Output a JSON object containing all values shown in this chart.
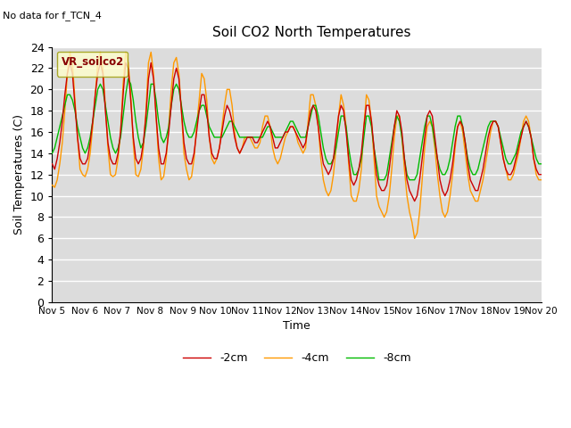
{
  "title": "Soil CO2 North Temperatures",
  "no_data_text": "No data for f_TCN_4",
  "legend_box_label": "VR_soilco2",
  "ylabel": "Soil Temperatures (C)",
  "xlabel": "Time",
  "ylim": [
    0,
    24
  ],
  "background_color": "#dcdcdc",
  "fig_background": "#ffffff",
  "colors": {
    "2cm": "#cc0000",
    "4cm": "#ff9900",
    "8cm": "#00bb00"
  },
  "legend_labels": [
    "-2cm",
    "-4cm",
    "-8cm"
  ],
  "x_tick_labels": [
    "Nov 5",
    "Nov 6",
    "Nov 7",
    "Nov 8",
    "Nov 9",
    "Nov 10",
    "Nov 11",
    "Nov 12",
    "Nov 13",
    "Nov 14",
    "Nov 15",
    "Nov 16",
    "Nov 17",
    "Nov 18",
    "Nov 19",
    "Nov 20"
  ],
  "v_4cm": [
    11.0,
    10.8,
    11.5,
    13.0,
    15.0,
    18.0,
    21.5,
    23.5,
    22.5,
    19.0,
    15.5,
    12.5,
    12.0,
    11.8,
    12.5,
    14.0,
    16.5,
    19.5,
    22.5,
    23.5,
    22.0,
    18.5,
    14.5,
    12.0,
    11.8,
    12.0,
    13.5,
    16.0,
    20.5,
    23.5,
    22.5,
    19.5,
    15.0,
    12.0,
    11.8,
    12.5,
    14.5,
    18.0,
    22.5,
    23.5,
    21.5,
    17.5,
    13.5,
    11.5,
    11.8,
    13.5,
    16.5,
    20.0,
    22.5,
    23.0,
    21.5,
    18.0,
    14.0,
    12.5,
    11.5,
    11.8,
    13.5,
    16.5,
    19.0,
    21.5,
    21.0,
    19.0,
    15.5,
    13.5,
    13.0,
    13.5,
    14.5,
    16.5,
    18.5,
    20.0,
    20.0,
    18.5,
    16.0,
    14.5,
    14.0,
    14.5,
    15.5,
    15.5,
    15.5,
    15.0,
    14.5,
    14.5,
    15.0,
    16.5,
    17.5,
    17.5,
    16.5,
    14.5,
    13.5,
    13.0,
    13.5,
    14.5,
    15.5,
    16.0,
    16.5,
    16.5,
    16.0,
    15.0,
    14.5,
    14.0,
    14.5,
    17.0,
    19.5,
    19.5,
    18.5,
    16.5,
    13.5,
    11.5,
    10.5,
    10.0,
    10.5,
    12.0,
    14.5,
    17.5,
    19.5,
    18.5,
    16.5,
    13.0,
    10.0,
    9.5,
    9.5,
    10.5,
    12.5,
    16.5,
    19.5,
    19.0,
    17.0,
    13.5,
    10.0,
    9.0,
    8.5,
    8.0,
    8.5,
    10.0,
    12.5,
    15.5,
    17.5,
    17.5,
    15.5,
    12.5,
    10.0,
    8.5,
    7.5,
    6.0,
    6.5,
    8.5,
    11.5,
    14.5,
    16.5,
    17.0,
    16.5,
    14.5,
    12.0,
    10.0,
    8.5,
    8.0,
    8.5,
    10.0,
    12.0,
    14.5,
    16.5,
    17.0,
    16.0,
    14.0,
    12.0,
    10.5,
    10.0,
    9.5,
    9.5,
    10.5,
    11.5,
    13.0,
    14.5,
    16.0,
    17.0,
    17.0,
    16.5,
    15.0,
    13.5,
    12.5,
    11.5,
    11.5,
    12.0,
    13.0,
    14.0,
    15.5,
    17.0,
    17.5,
    17.0,
    15.5,
    13.5,
    12.0,
    11.5,
    11.5
  ],
  "v_2cm": [
    13.0,
    12.5,
    13.5,
    15.0,
    17.0,
    19.5,
    21.5,
    22.5,
    21.5,
    18.5,
    15.5,
    13.5,
    13.0,
    13.0,
    13.5,
    15.0,
    17.0,
    19.5,
    21.5,
    22.5,
    21.5,
    18.0,
    15.0,
    13.5,
    13.0,
    13.0,
    14.0,
    16.0,
    19.5,
    22.5,
    22.0,
    19.0,
    15.5,
    13.5,
    13.0,
    13.5,
    15.0,
    17.5,
    21.0,
    22.5,
    21.0,
    17.5,
    14.5,
    13.0,
    13.0,
    14.0,
    16.0,
    18.5,
    21.0,
    22.0,
    21.0,
    18.0,
    15.0,
    13.5,
    13.0,
    13.0,
    14.0,
    16.0,
    18.0,
    19.5,
    19.5,
    18.0,
    15.5,
    14.0,
    13.5,
    13.5,
    14.5,
    16.0,
    17.5,
    18.5,
    18.0,
    17.0,
    15.5,
    14.5,
    14.0,
    14.5,
    15.0,
    15.5,
    15.5,
    15.5,
    15.0,
    15.0,
    15.5,
    16.0,
    16.5,
    17.0,
    16.5,
    15.5,
    14.5,
    14.5,
    15.0,
    15.5,
    16.0,
    16.0,
    16.5,
    16.5,
    16.0,
    15.5,
    15.0,
    14.5,
    15.0,
    16.5,
    18.0,
    18.5,
    18.0,
    16.5,
    14.5,
    13.0,
    12.5,
    12.0,
    12.5,
    13.5,
    15.5,
    17.5,
    18.5,
    18.0,
    16.0,
    13.5,
    11.5,
    11.0,
    11.5,
    12.5,
    14.0,
    16.5,
    18.5,
    18.5,
    17.0,
    14.5,
    12.0,
    11.0,
    10.5,
    10.5,
    11.0,
    12.5,
    14.5,
    16.5,
    18.0,
    17.5,
    16.0,
    13.5,
    11.5,
    10.5,
    10.0,
    9.5,
    10.0,
    11.5,
    13.5,
    15.5,
    17.5,
    18.0,
    17.5,
    15.5,
    13.5,
    11.5,
    10.5,
    10.0,
    10.5,
    11.5,
    13.0,
    15.0,
    16.5,
    17.0,
    16.5,
    15.0,
    13.0,
    11.5,
    11.0,
    10.5,
    10.5,
    11.5,
    12.5,
    14.0,
    15.5,
    16.5,
    17.0,
    17.0,
    16.5,
    15.0,
    13.5,
    12.5,
    12.0,
    12.0,
    12.5,
    13.5,
    14.5,
    15.5,
    16.5,
    17.0,
    16.5,
    15.5,
    13.5,
    12.5,
    12.0,
    12.0
  ],
  "v_8cm": [
    14.0,
    14.5,
    15.5,
    16.5,
    17.5,
    18.5,
    19.5,
    19.5,
    19.0,
    18.0,
    16.5,
    15.5,
    14.5,
    14.0,
    14.5,
    15.5,
    17.0,
    18.5,
    20.0,
    20.5,
    20.0,
    18.5,
    17.0,
    15.5,
    14.5,
    14.0,
    14.5,
    15.5,
    17.5,
    19.5,
    21.0,
    20.5,
    19.0,
    17.0,
    15.5,
    14.5,
    15.0,
    16.5,
    18.5,
    20.5,
    20.5,
    19.0,
    17.0,
    15.5,
    15.0,
    15.5,
    16.5,
    18.5,
    20.0,
    20.5,
    20.0,
    18.5,
    17.0,
    16.0,
    15.5,
    15.5,
    16.0,
    17.0,
    18.0,
    18.5,
    18.5,
    17.5,
    16.5,
    16.0,
    15.5,
    15.5,
    15.5,
    15.5,
    16.0,
    16.5,
    17.0,
    17.0,
    16.5,
    16.0,
    15.5,
    15.5,
    15.5,
    15.5,
    15.5,
    15.5,
    15.5,
    15.5,
    15.5,
    15.5,
    16.0,
    16.5,
    16.5,
    16.0,
    15.5,
    15.5,
    15.5,
    15.5,
    16.0,
    16.5,
    17.0,
    17.0,
    16.5,
    16.0,
    15.5,
    15.5,
    15.5,
    16.5,
    17.5,
    18.5,
    18.5,
    17.5,
    16.0,
    14.5,
    13.5,
    13.0,
    13.0,
    13.5,
    14.5,
    16.0,
    17.5,
    17.5,
    16.5,
    14.5,
    13.0,
    12.0,
    12.0,
    12.5,
    13.5,
    15.5,
    17.5,
    17.5,
    16.5,
    14.5,
    13.0,
    11.5,
    11.5,
    11.5,
    12.0,
    13.5,
    15.0,
    16.5,
    17.5,
    17.0,
    15.5,
    13.5,
    12.0,
    11.5,
    11.5,
    11.5,
    12.0,
    13.5,
    15.0,
    16.5,
    17.5,
    17.5,
    16.5,
    15.0,
    13.5,
    12.5,
    12.0,
    12.0,
    12.5,
    13.5,
    15.0,
    16.5,
    17.5,
    17.5,
    16.5,
    15.0,
    13.5,
    12.5,
    12.0,
    12.0,
    12.5,
    13.5,
    14.5,
    15.5,
    16.5,
    17.0,
    17.0,
    17.0,
    16.5,
    15.5,
    14.5,
    13.5,
    13.0,
    13.0,
    13.5,
    14.0,
    15.0,
    16.0,
    16.5,
    17.0,
    16.5,
    15.5,
    14.5,
    13.5,
    13.0,
    13.0
  ]
}
